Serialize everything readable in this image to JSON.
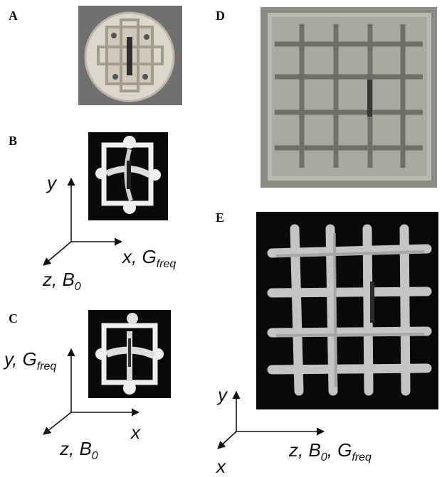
{
  "panels": {
    "a": {
      "letter": "A"
    },
    "b": {
      "letter": "B",
      "axis_y": "y",
      "axis_x": "x, G",
      "axis_x_sub": "freq",
      "axis_z": "z, B",
      "axis_z_sub": "0"
    },
    "c": {
      "letter": "C",
      "axis_y": "y, G",
      "axis_y_sub": "freq",
      "axis_x": "x",
      "axis_z": "z, B",
      "axis_z_sub": "0"
    },
    "d": {
      "letter": "D"
    },
    "e": {
      "letter": "E",
      "axis_y": "y",
      "axis_x": "x",
      "axis_z": "z, B",
      "axis_z_sub": "0",
      "axis_z_tail": ", G",
      "axis_z_tail_sub": "freq"
    }
  },
  "colors": {
    "background": "#ffffff",
    "photo_gray": "#6e6e6e",
    "mri_black": "#0a0a0a",
    "phantom_white": "#f2f2f2",
    "grid_tan": "#9a9a8e"
  }
}
